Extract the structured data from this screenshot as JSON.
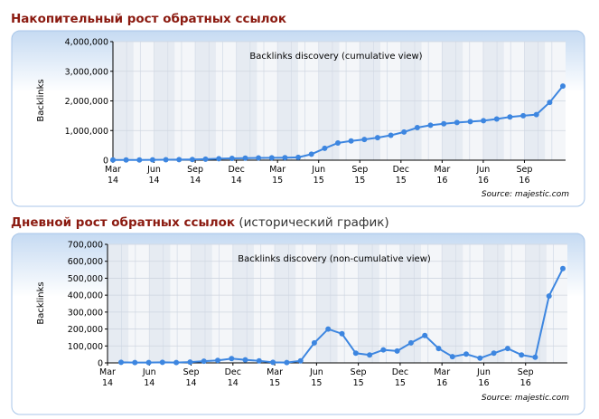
{
  "sections": [
    {
      "title": "Накопительный рост обратных ссылок",
      "note": ""
    },
    {
      "title": "Дневной рост обратных ссылок",
      "note": " (исторический график)"
    }
  ],
  "colors": {
    "title": "#8b1a10",
    "line": "#3d86e0",
    "panel_outer": "#a8c6e9",
    "stripe_a": "#e6ebf2",
    "stripe_b": "#f4f6f9"
  },
  "chart_data": [
    {
      "type": "line",
      "title": "Backlinks discovery (cumulative view)",
      "ylabel": "Backlinks",
      "xlabel": "",
      "ylim": [
        0,
        4000000
      ],
      "yticks": [
        0,
        1000000,
        2000000,
        3000000,
        4000000
      ],
      "ytick_labels": [
        "0",
        "1,000,000",
        "2,000,000",
        "3,000,000",
        "4,000,000"
      ],
      "xtick_labels": [
        [
          "Mar",
          "14"
        ],
        [
          "Jun",
          "14"
        ],
        [
          "Sep",
          "14"
        ],
        [
          "Dec",
          "14"
        ],
        [
          "Mar",
          "15"
        ],
        [
          "Jun",
          "15"
        ],
        [
          "Sep",
          "15"
        ],
        [
          "Dec",
          "15"
        ],
        [
          "Mar",
          "16"
        ],
        [
          "Jun",
          "16"
        ],
        [
          "Sep",
          "16"
        ]
      ],
      "grid": true,
      "source": "Source: majestic.com",
      "series": [
        {
          "values": [
            5000,
            8000,
            10000,
            12000,
            15000,
            18000,
            25000,
            35000,
            50000,
            60000,
            70000,
            75000,
            80000,
            85000,
            95000,
            200000,
            400000,
            580000,
            650000,
            700000,
            760000,
            840000,
            950000,
            1100000,
            1180000,
            1230000,
            1270000,
            1300000,
            1330000,
            1390000,
            1460000,
            1500000,
            1540000,
            1950000,
            2500000
          ]
        }
      ]
    },
    {
      "type": "line",
      "title": "Backlinks discovery (non-cumulative view)",
      "ylabel": "Backlinks",
      "xlabel": "",
      "ylim": [
        0,
        700000
      ],
      "yticks": [
        0,
        100000,
        200000,
        300000,
        400000,
        500000,
        600000,
        700000
      ],
      "ytick_labels": [
        "0",
        "100,000",
        "200,000",
        "300,000",
        "400,000",
        "500,000",
        "600,000",
        "700,000"
      ],
      "xtick_labels": [
        [
          "Mar",
          "14"
        ],
        [
          "Jun",
          "14"
        ],
        [
          "Sep",
          "14"
        ],
        [
          "Dec",
          "14"
        ],
        [
          "Mar",
          "15"
        ],
        [
          "Jun",
          "15"
        ],
        [
          "Sep",
          "15"
        ],
        [
          "Dec",
          "15"
        ],
        [
          "Mar",
          "16"
        ],
        [
          "Jun",
          "16"
        ],
        [
          "Sep",
          "16"
        ]
      ],
      "grid": true,
      "source": "Source: majestic.com",
      "series": [
        {
          "values": [
            3000,
            2000,
            2000,
            3000,
            2000,
            5000,
            10000,
            15000,
            25000,
            18000,
            12000,
            3000,
            2000,
            12000,
            118000,
            200000,
            172000,
            57000,
            47000,
            77000,
            70000,
            118000,
            162000,
            85000,
            37000,
            52000,
            28000,
            57000,
            85000,
            47000,
            33000,
            395000,
            557000
          ]
        }
      ]
    }
  ]
}
